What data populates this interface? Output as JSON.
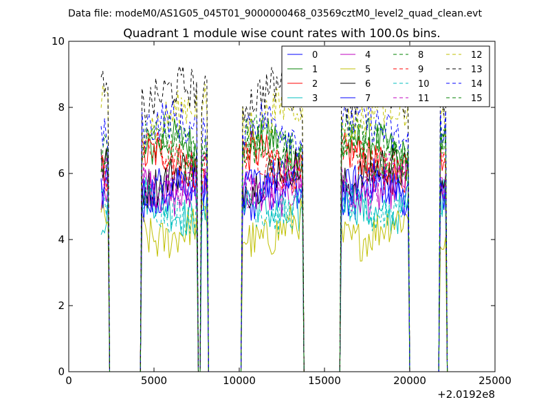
{
  "suptitle": "Data file: modeM0/AS1G05_045T01_9000000468_03569cztM0_level2_quad_clean.evt",
  "chart_data": {
    "type": "line",
    "title": "Quadrant 1 module wise count rates with 100.0s bins.",
    "xlabel": "",
    "ylabel": "",
    "x_offset_label": "+2.0192e8",
    "xlim": [
      0,
      25000
    ],
    "ylim": [
      0,
      10
    ],
    "xticks": [
      0,
      5000,
      10000,
      15000,
      20000,
      25000
    ],
    "xtick_labels": [
      "0",
      "5000",
      "10000",
      "15000",
      "20000",
      "25000"
    ],
    "yticks": [
      0,
      2,
      4,
      6,
      8,
      10
    ],
    "ytick_labels": [
      "0",
      "2",
      "4",
      "6",
      "8",
      "10"
    ],
    "grid": false,
    "legend_position": "top-right",
    "bin_width_s": 100,
    "active_intervals": [
      [
        1900,
        2300
      ],
      [
        4300,
        7500
      ],
      [
        7800,
        8100
      ],
      [
        10200,
        13700
      ],
      [
        16000,
        19900
      ],
      [
        21800,
        22100
      ]
    ],
    "series": [
      {
        "name": "0",
        "color": "#0000ff",
        "style": "solid",
        "level": 5.3
      },
      {
        "name": "1",
        "color": "#008000",
        "style": "solid",
        "level": 6.7
      },
      {
        "name": "2",
        "color": "#ff0000",
        "style": "solid",
        "level": 6.3
      },
      {
        "name": "3",
        "color": "#00bfbf",
        "style": "solid",
        "level": 5.0
      },
      {
        "name": "4",
        "color": "#bf00bf",
        "style": "solid",
        "level": 5.6
      },
      {
        "name": "5",
        "color": "#bfbf00",
        "style": "solid",
        "level": 4.3
      },
      {
        "name": "6",
        "color": "#000000",
        "style": "solid",
        "level": 5.9
      },
      {
        "name": "7",
        "color": "#0000ff",
        "style": "solid",
        "level": 5.5
      },
      {
        "name": "8",
        "color": "#008000",
        "style": "dashed",
        "level": 6.9
      },
      {
        "name": "9",
        "color": "#ff0000",
        "style": "dashed",
        "level": 6.4
      },
      {
        "name": "10",
        "color": "#00bfbf",
        "style": "dashed",
        "level": 5.1
      },
      {
        "name": "11",
        "color": "#bf00bf",
        "style": "dashed",
        "level": 5.8
      },
      {
        "name": "12",
        "color": "#bfbf00",
        "style": "dashed",
        "level": 7.8
      },
      {
        "name": "13",
        "color": "#000000",
        "style": "dashed",
        "level": 8.3
      },
      {
        "name": "14",
        "color": "#0000ff",
        "style": "dashed",
        "level": 7.3
      },
      {
        "name": "15",
        "color": "#008000",
        "style": "dashed",
        "level": 6.6
      }
    ]
  }
}
